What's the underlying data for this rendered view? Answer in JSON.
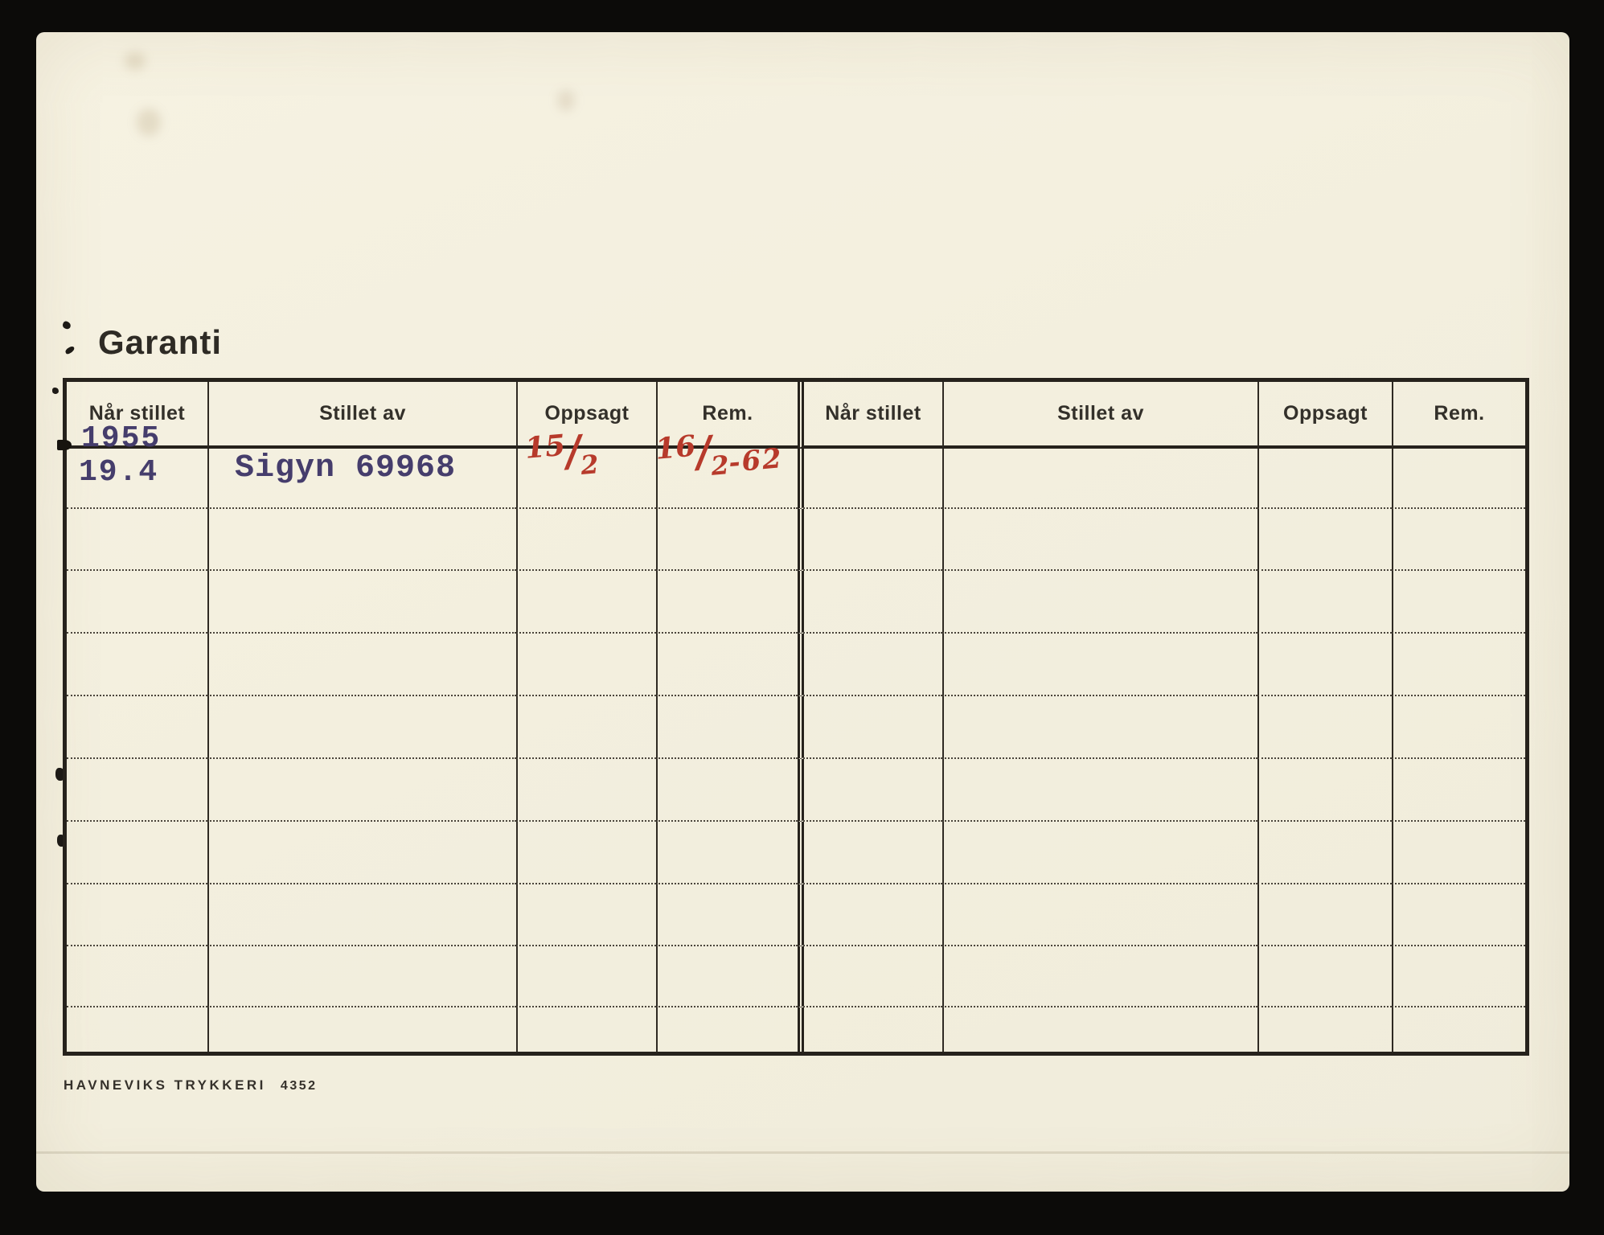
{
  "title": "Garanti",
  "table": {
    "columns": [
      "Når stillet",
      "Stillet av",
      "Oppsagt",
      "Rem."
    ],
    "entry": {
      "year_struck": "1955",
      "date": "19.4",
      "stillet_av": "Sigyn 69968",
      "oppsagt": "15/2",
      "oppsagt_num": "15",
      "oppsagt_den": "2",
      "rem": "16/2-62",
      "rem_num": "16",
      "rem_den": "2",
      "rem_suffix": "-62"
    }
  },
  "footer": {
    "printer": "HAVNEVIKS TRYKKERI",
    "number": "4352"
  },
  "colors": {
    "paper": "#f3efde",
    "typewriter_ink": "#453d6c",
    "handwriting_ink": "#b73a2b",
    "line_ink": "#26221c"
  }
}
